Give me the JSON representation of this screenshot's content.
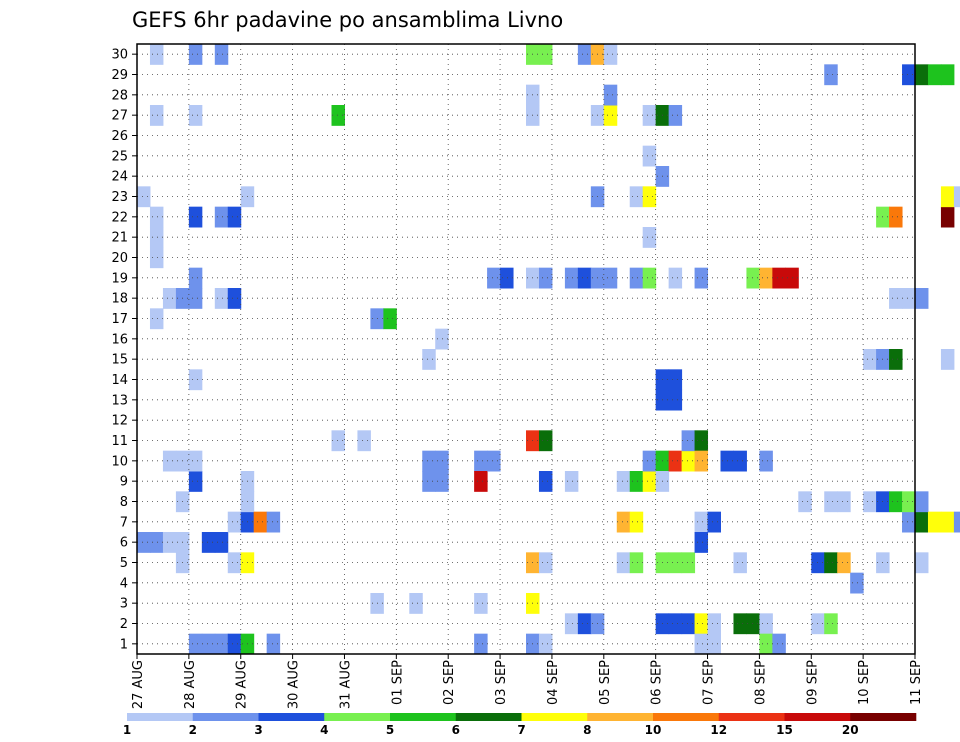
{
  "chart_data": {
    "type": "heatmap",
    "title": "GEFS 6hr padavine po ansamblima Livno",
    "y_ticks": [
      "1",
      "2",
      "3",
      "4",
      "5",
      "6",
      "7",
      "8",
      "9",
      "10",
      "11",
      "12",
      "13",
      "14",
      "15",
      "16",
      "17",
      "18",
      "19",
      "20",
      "21",
      "22",
      "23",
      "24",
      "25",
      "26",
      "27",
      "28",
      "29",
      "30"
    ],
    "x_ticks": [
      "27 AUG",
      "28 AUG",
      "29 AUG",
      "30 AUG",
      "31 AUG",
      "01 SEP",
      "02 SEP",
      "03 SEP",
      "04 SEP",
      "05 SEP",
      "06 SEP",
      "07 SEP",
      "08 SEP",
      "09 SEP",
      "10 SEP",
      "11 SEP"
    ],
    "x_range_steps": [
      0,
      60
    ],
    "y_range_members": [
      1,
      30
    ],
    "grid": true,
    "levels": [
      "1",
      "2",
      "3",
      "4",
      "5",
      "6",
      "7",
      "8",
      "10",
      "12",
      "15",
      "20"
    ],
    "level_colors": [
      "#b4c8f5",
      "#6e92ec",
      "#1e50dc",
      "#78f050",
      "#1ec31e",
      "#0a6e0a",
      "#ffff0a",
      "#ffb432",
      "#fa780a",
      "#eb3214",
      "#c80a0a",
      "#780000"
    ],
    "cells": [
      [
        0,
        6,
        1
      ],
      [
        0,
        23,
        0
      ],
      [
        1,
        6,
        1
      ],
      [
        1,
        20,
        0
      ],
      [
        1,
        21,
        0
      ],
      [
        1,
        22,
        0
      ],
      [
        1,
        27,
        0
      ],
      [
        1,
        30,
        0
      ],
      [
        1,
        17,
        0
      ],
      [
        2,
        6,
        0
      ],
      [
        2,
        18,
        0
      ],
      [
        2,
        10,
        0
      ],
      [
        3,
        6,
        0
      ],
      [
        3,
        18,
        1
      ],
      [
        3,
        10,
        0
      ],
      [
        3,
        8,
        0
      ],
      [
        3,
        5,
        0
      ],
      [
        4,
        1,
        1
      ],
      [
        4,
        9,
        2
      ],
      [
        4,
        18,
        1
      ],
      [
        4,
        19,
        1
      ],
      [
        4,
        22,
        2
      ],
      [
        4,
        27,
        0
      ],
      [
        4,
        30,
        1
      ],
      [
        4,
        14,
        0
      ],
      [
        4,
        10,
        0
      ],
      [
        5,
        1,
        1
      ],
      [
        5,
        6,
        2
      ],
      [
        6,
        1,
        1
      ],
      [
        6,
        30,
        1
      ],
      [
        6,
        6,
        2
      ],
      [
        6,
        22,
        1
      ],
      [
        6,
        18,
        0
      ],
      [
        7,
        1,
        2
      ],
      [
        7,
        5,
        0
      ],
      [
        7,
        7,
        0
      ],
      [
        7,
        22,
        2
      ],
      [
        7,
        18,
        2
      ],
      [
        8,
        1,
        4
      ],
      [
        8,
        5,
        6
      ],
      [
        8,
        7,
        2
      ],
      [
        8,
        8,
        0
      ],
      [
        8,
        9,
        0
      ],
      [
        8,
        23,
        0
      ],
      [
        9,
        7,
        8
      ],
      [
        10,
        1,
        1
      ],
      [
        10,
        7,
        1
      ],
      [
        15,
        27,
        4
      ],
      [
        15,
        11,
        0
      ],
      [
        17,
        11,
        0
      ],
      [
        18,
        3,
        0
      ],
      [
        18,
        17,
        1
      ],
      [
        19,
        17,
        4
      ],
      [
        21,
        3,
        0
      ],
      [
        22,
        15,
        0
      ],
      [
        22,
        9,
        1
      ],
      [
        22,
        10,
        1
      ],
      [
        23,
        9,
        1
      ],
      [
        23,
        10,
        1
      ],
      [
        23,
        16,
        0
      ],
      [
        26,
        10,
        1
      ],
      [
        26,
        9,
        10
      ],
      [
        27,
        10,
        1
      ],
      [
        26,
        1,
        1
      ],
      [
        26,
        3,
        0
      ],
      [
        27,
        19,
        1
      ],
      [
        28,
        19,
        2
      ],
      [
        30,
        30,
        3
      ],
      [
        30,
        27,
        0
      ],
      [
        30,
        28,
        0
      ],
      [
        30,
        19,
        0
      ],
      [
        30,
        1,
        1
      ],
      [
        30,
        11,
        9
      ],
      [
        30,
        5,
        7
      ],
      [
        30,
        3,
        6
      ],
      [
        31,
        30,
        3
      ],
      [
        31,
        11,
        5
      ],
      [
        31,
        9,
        2
      ],
      [
        31,
        5,
        0
      ],
      [
        31,
        1,
        0
      ],
      [
        31,
        19,
        1
      ],
      [
        33,
        2,
        0
      ],
      [
        33,
        9,
        0
      ],
      [
        33,
        19,
        1
      ],
      [
        34,
        30,
        1
      ],
      [
        34,
        2,
        2
      ],
      [
        34,
        19,
        2
      ],
      [
        35,
        30,
        7
      ],
      [
        35,
        27,
        0
      ],
      [
        35,
        2,
        1
      ],
      [
        35,
        19,
        1
      ],
      [
        35,
        23,
        1
      ],
      [
        36,
        30,
        0
      ],
      [
        36,
        27,
        6
      ],
      [
        36,
        28,
        1
      ],
      [
        36,
        19,
        1
      ],
      [
        37,
        9,
        0
      ],
      [
        37,
        7,
        7
      ],
      [
        37,
        5,
        0
      ],
      [
        38,
        23,
        0
      ],
      [
        38,
        19,
        1
      ],
      [
        38,
        9,
        4
      ],
      [
        38,
        7,
        6
      ],
      [
        38,
        5,
        3
      ],
      [
        39,
        23,
        6
      ],
      [
        39,
        19,
        3
      ],
      [
        39,
        9,
        6
      ],
      [
        39,
        10,
        1
      ],
      [
        39,
        27,
        0
      ],
      [
        39,
        25,
        0
      ],
      [
        39,
        21,
        0
      ],
      [
        40,
        27,
        5
      ],
      [
        40,
        24,
        1
      ],
      [
        40,
        10,
        4
      ],
      [
        40,
        9,
        0
      ],
      [
        40,
        13,
        2
      ],
      [
        40,
        14,
        2
      ],
      [
        40,
        2,
        2
      ],
      [
        40,
        5,
        3
      ],
      [
        41,
        27,
        1
      ],
      [
        41,
        13,
        2
      ],
      [
        41,
        14,
        2
      ],
      [
        41,
        10,
        9
      ],
      [
        41,
        2,
        2
      ],
      [
        41,
        5,
        3
      ],
      [
        41,
        19,
        0
      ],
      [
        42,
        10,
        6
      ],
      [
        42,
        2,
        2
      ],
      [
        42,
        5,
        3
      ],
      [
        42,
        11,
        1
      ],
      [
        43,
        11,
        5
      ],
      [
        43,
        10,
        7
      ],
      [
        43,
        2,
        6
      ],
      [
        43,
        1,
        0
      ],
      [
        43,
        7,
        0
      ],
      [
        43,
        6,
        2
      ],
      [
        43,
        19,
        1
      ],
      [
        44,
        2,
        0
      ],
      [
        44,
        1,
        0
      ],
      [
        44,
        7,
        2
      ],
      [
        45,
        10,
        2
      ],
      [
        46,
        10,
        2
      ],
      [
        46,
        2,
        5
      ],
      [
        46,
        5,
        0
      ],
      [
        47,
        19,
        3
      ],
      [
        47,
        2,
        5
      ],
      [
        48,
        19,
        7
      ],
      [
        48,
        10,
        1
      ],
      [
        48,
        2,
        0
      ],
      [
        48,
        1,
        3
      ],
      [
        49,
        19,
        10
      ],
      [
        49,
        1,
        1
      ],
      [
        50,
        19,
        10
      ],
      [
        51,
        8,
        0
      ],
      [
        52,
        2,
        0
      ],
      [
        52,
        5,
        2
      ],
      [
        53,
        2,
        3
      ],
      [
        53,
        5,
        5
      ],
      [
        53,
        29,
        1
      ],
      [
        53,
        8,
        0
      ],
      [
        54,
        5,
        7
      ],
      [
        54,
        8,
        0
      ],
      [
        55,
        4,
        1
      ],
      [
        56,
        15,
        0
      ],
      [
        56,
        8,
        0
      ],
      [
        57,
        15,
        1
      ],
      [
        57,
        22,
        3
      ],
      [
        57,
        5,
        0
      ],
      [
        57,
        8,
        2
      ],
      [
        58,
        15,
        5
      ],
      [
        58,
        22,
        8
      ],
      [
        58,
        8,
        4
      ],
      [
        58,
        18,
        0
      ],
      [
        59,
        18,
        0
      ],
      [
        59,
        7,
        1
      ],
      [
        59,
        29,
        2
      ],
      [
        59,
        8,
        3
      ],
      [
        60,
        18,
        1
      ],
      [
        60,
        29,
        5
      ],
      [
        60,
        7,
        5
      ],
      [
        60,
        8,
        1
      ],
      [
        60,
        5,
        0
      ],
      [
        61,
        29,
        4
      ],
      [
        61,
        7,
        6
      ],
      [
        62,
        22,
        11
      ],
      [
        62,
        23,
        6
      ],
      [
        62,
        29,
        4
      ],
      [
        62,
        7,
        6
      ],
      [
        62,
        15,
        0
      ],
      [
        63,
        23,
        0
      ],
      [
        63,
        7,
        1
      ]
    ]
  }
}
